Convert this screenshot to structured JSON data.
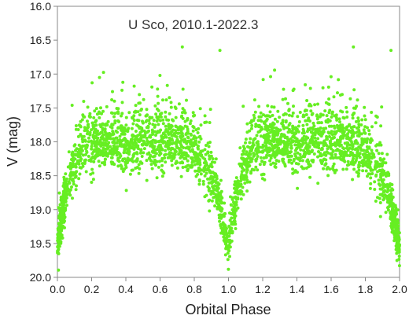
{
  "chart_data": {
    "type": "scatter",
    "title": "U Sco, 2010.1-2022.3",
    "xlabel": "Orbital Phase",
    "ylabel": "V (mag)",
    "xlim": [
      0.0,
      2.0
    ],
    "ylim": [
      16.0,
      20.0
    ],
    "y_inverted": true,
    "grid": false,
    "legend": "none",
    "x_ticks": [
      "0.0",
      "0.2",
      "0.4",
      "0.6",
      "0.8",
      "1.0",
      "1.2",
      "1.4",
      "1.6",
      "1.8",
      "2.0"
    ],
    "y_ticks": [
      "16.0",
      "16.5",
      "17.0",
      "17.5",
      "18.0",
      "18.5",
      "19.0",
      "19.5",
      "20.0"
    ],
    "marker_color": "#66ee22",
    "x_tick_step": 0.2,
    "y_tick_step": 0.5,
    "series": [
      {
        "name": "",
        "description": "phase-folded V-band light curve, mirrored over two orbital cycles; eclipse minima near phase 0.0, 1.0 and 2.0 (V ~19.5-19.7), out-of-eclipse level ~18.0 with scatter to ~16.6",
        "profile": [
          {
            "x": 0.0,
            "y": 19.5
          },
          {
            "x": 0.03,
            "y": 19.0
          },
          {
            "x": 0.08,
            "y": 18.4
          },
          {
            "x": 0.15,
            "y": 18.1
          },
          {
            "x": 0.25,
            "y": 18.0
          },
          {
            "x": 0.4,
            "y": 18.05
          },
          {
            "x": 0.6,
            "y": 18.0
          },
          {
            "x": 0.75,
            "y": 18.05
          },
          {
            "x": 0.85,
            "y": 18.3
          },
          {
            "x": 0.92,
            "y": 18.55
          },
          {
            "x": 0.97,
            "y": 19.2
          },
          {
            "x": 1.0,
            "y": 19.55
          }
        ],
        "outliers": [
          {
            "x": 0.73,
            "y": 16.6
          },
          {
            "x": 0.95,
            "y": 16.65
          },
          {
            "x": 1.73,
            "y": 16.6
          },
          {
            "x": 1.95,
            "y": 16.65
          }
        ]
      }
    ]
  }
}
